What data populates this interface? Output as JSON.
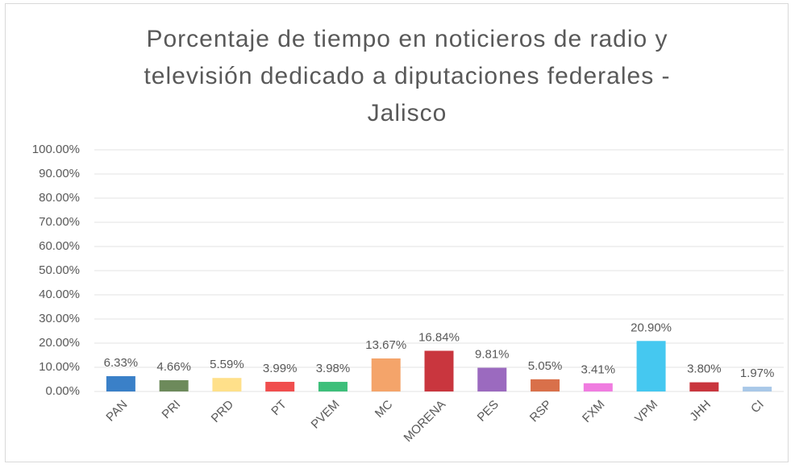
{
  "chart_data": {
    "type": "bar",
    "title": "Porcentaje de tiempo en noticieros de radio y televisión dedicado a diputaciones federales - Jalisco",
    "categories": [
      "PAN",
      "PRI",
      "PRD",
      "PT",
      "PVEM",
      "MC",
      "MORENA",
      "PES",
      "RSP",
      "FXM",
      "VPM",
      "JHH",
      "CI"
    ],
    "values": [
      6.33,
      4.66,
      5.59,
      3.99,
      3.98,
      13.67,
      16.84,
      9.81,
      5.05,
      3.41,
      20.9,
      3.8,
      1.97
    ],
    "value_labels": [
      "6.33%",
      "4.66%",
      "5.59%",
      "3.99%",
      "3.98%",
      "13.67%",
      "16.84%",
      "9.81%",
      "5.05%",
      "3.41%",
      "20.90%",
      "3.80%",
      "1.97%"
    ],
    "colors": [
      "#3a80c8",
      "#6d8a5b",
      "#ffe08a",
      "#f04e4e",
      "#3dbf7a",
      "#f4a46a",
      "#c9363e",
      "#9b6abf",
      "#d9704a",
      "#f07ce0",
      "#45c8f0",
      "#c9363e",
      "#a9c8e8"
    ],
    "ylim": [
      0,
      100
    ],
    "yticks": [
      {
        "value": 0,
        "label": "0.00%"
      },
      {
        "value": 10,
        "label": "10.00%"
      },
      {
        "value": 20,
        "label": "20.00%"
      },
      {
        "value": 30,
        "label": "30.00%"
      },
      {
        "value": 40,
        "label": "40.00%"
      },
      {
        "value": 50,
        "label": "50.00%"
      },
      {
        "value": 60,
        "label": "60.00%"
      },
      {
        "value": 70,
        "label": "70.00%"
      },
      {
        "value": 80,
        "label": "80.00%"
      },
      {
        "value": 90,
        "label": "90.00%"
      },
      {
        "value": 100,
        "label": "100.00%"
      }
    ],
    "grid": true
  }
}
